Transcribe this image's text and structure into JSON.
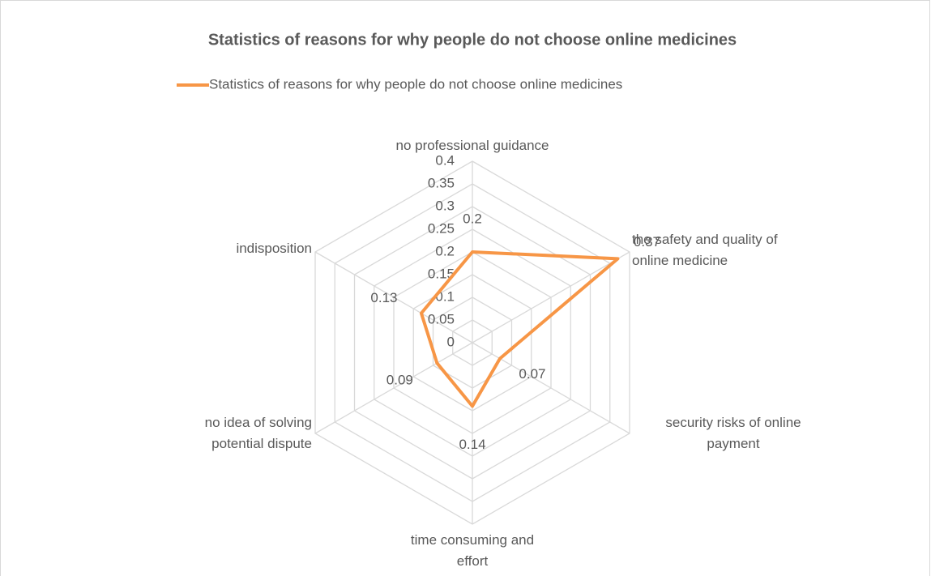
{
  "chart_data": {
    "type": "radar",
    "title": "Statistics of reasons for why people do not choose online medicines",
    "categories": [
      "no professional guidance",
      "the safety and quality of online medicine",
      "security risks of online payment",
      "time consuming and effort",
      "no idea of solving potential dispute",
      "indisposition"
    ],
    "series": [
      {
        "name": "Statistics of reasons for why people do not choose online medicines",
        "color": "#f79646",
        "values": [
          0.2,
          0.37,
          0.07,
          0.14,
          0.09,
          0.13
        ]
      }
    ],
    "ylim": [
      0,
      0.4
    ],
    "yticks": [
      0,
      0.05,
      0.1,
      0.15,
      0.2,
      0.25,
      0.3,
      0.35,
      0.4
    ],
    "grid": true,
    "legend": "top"
  }
}
